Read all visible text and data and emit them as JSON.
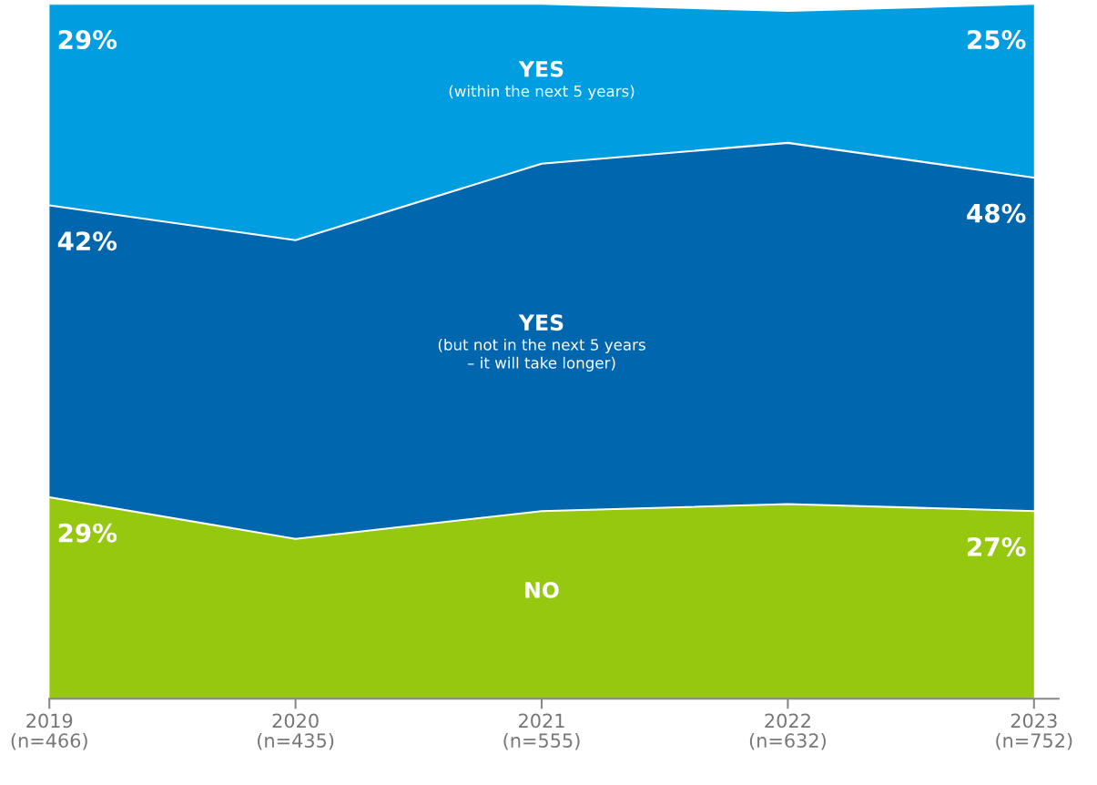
{
  "chart_data": {
    "type": "area",
    "stacked": true,
    "categories": [
      "2019\n(n=466)",
      "2020\n(n=435)",
      "2021\n(n=555)",
      "2022\n(n=632)",
      "2023\n(n=752)"
    ],
    "series": [
      {
        "name": "NO",
        "color": "#96c80f",
        "values": [
          29,
          23,
          27,
          28,
          27
        ],
        "value_labels": [
          "29%",
          null,
          null,
          null,
          "27%"
        ]
      },
      {
        "name": "YES\n(but not in the next 5 years\n– it will take longer)",
        "color": "#0066ad",
        "values": [
          42,
          43,
          50,
          52,
          48
        ],
        "value_labels": [
          "42%",
          null,
          null,
          null,
          "48%"
        ]
      },
      {
        "name": "YES\n(within the next 5 years)",
        "color": "#009ee0",
        "values": [
          29,
          34,
          23,
          19,
          25
        ],
        "value_labels": [
          "29%",
          null,
          null,
          null,
          "25%"
        ]
      }
    ],
    "legend": false,
    "grid": false
  }
}
